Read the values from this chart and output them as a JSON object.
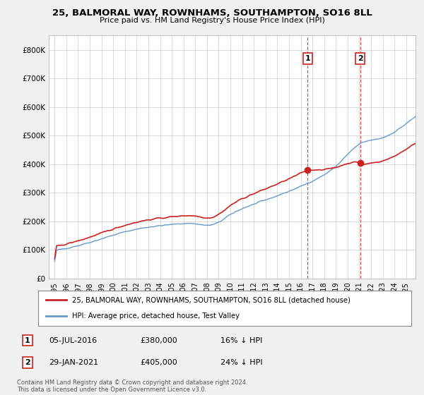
{
  "title1": "25, BALMORAL WAY, ROWNHAMS, SOUTHAMPTON, SO16 8LL",
  "title2": "Price paid vs. HM Land Registry's House Price Index (HPI)",
  "ylim": [
    0,
    850000
  ],
  "yticks": [
    0,
    100000,
    200000,
    300000,
    400000,
    500000,
    600000,
    700000,
    800000
  ],
  "ytick_labels": [
    "£0",
    "£100K",
    "£200K",
    "£300K",
    "£400K",
    "£500K",
    "£600K",
    "£700K",
    "£800K"
  ],
  "hpi_color": "#6699cc",
  "price_color": "#cc2222",
  "dashed_color": "#cc2222",
  "sale1_date": "05-JUL-2016",
  "sale1_price": 380000,
  "sale1_note": "16% ↓ HPI",
  "sale2_date": "29-JAN-2021",
  "sale2_price": 405000,
  "sale2_note": "24% ↓ HPI",
  "legend_line1": "25, BALMORAL WAY, ROWNHAMS, SOUTHAMPTON, SO16 8LL (detached house)",
  "legend_line2": "HPI: Average price, detached house, Test Valley",
  "footer": "Contains HM Land Registry data © Crown copyright and database right 2024.\nThis data is licensed under the Open Government Licence v3.0.",
  "background_color": "#f0f0f0",
  "plot_bg_color": "#ffffff"
}
